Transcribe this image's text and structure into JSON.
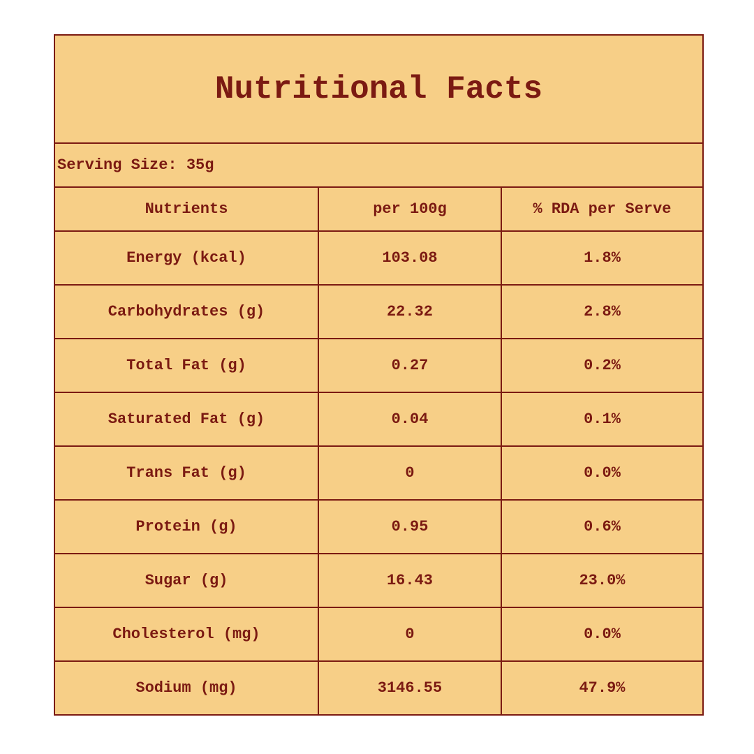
{
  "title": "Nutritional Facts",
  "serving_size": "Serving Size: 35g",
  "table": {
    "header": [
      "Nutrients",
      "per 100g",
      "% RDA per Serve"
    ],
    "rows": [
      [
        "Energy (kcal)",
        "103.08",
        "1.8%"
      ],
      [
        "Carbohydrates (g)",
        "22.32",
        "2.8%"
      ],
      [
        "Total Fat (g)",
        "0.27",
        "0.2%"
      ],
      [
        "Saturated Fat (g)",
        "0.04",
        "0.1%"
      ],
      [
        "Trans Fat (g)",
        "0",
        "0.0%"
      ],
      [
        "Protein (g)",
        "0.95",
        "0.6%"
      ],
      [
        "Sugar (g)",
        "16.43",
        "23.0%"
      ],
      [
        "Cholesterol (mg)",
        "0",
        "0.0%"
      ],
      [
        "Sodium (mg)",
        "3146.55",
        "47.9%"
      ]
    ]
  }
}
